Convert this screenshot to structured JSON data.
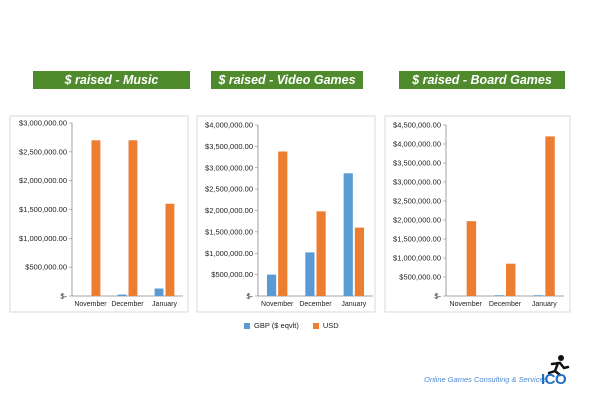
{
  "colors": {
    "gbp": "#5b9bd5",
    "usd": "#ed7d31",
    "banner": "#4f8a2d",
    "brand": "#1f6fc0"
  },
  "banners": [
    "$ raised  - Music",
    "$ raised  - Video Games",
    "$ raised  - Board Games"
  ],
  "legend": {
    "gbp": "GBP ($ eqvlt)",
    "usd": "USD"
  },
  "footer": {
    "tagline": "Online Games Consulting & Services",
    "logo_text": "ICO",
    "logo_icon": "running-person-icon"
  },
  "chart_data": [
    {
      "type": "bar",
      "title": "$ raised  - Music",
      "categories": [
        "November",
        "December",
        "January"
      ],
      "series": [
        {
          "name": "GBP ($ eqvlt)",
          "values": [
            0,
            25000,
            130000
          ]
        },
        {
          "name": "USD",
          "values": [
            2700000,
            2700000,
            1600000
          ]
        }
      ],
      "ylim": [
        0,
        3000000
      ],
      "yticks": [
        "$-",
        "$500,000.00",
        "$1,000,000.00",
        "$1,500,000.00",
        "$2,000,000.00",
        "$2,500,000.00",
        "$3,000,000.00"
      ],
      "grid": false
    },
    {
      "type": "bar",
      "title": "$ raised  - Video Games",
      "categories": [
        "November",
        "December",
        "January"
      ],
      "series": [
        {
          "name": "GBP ($ eqvlt)",
          "values": [
            500000,
            1020000,
            2870000
          ]
        },
        {
          "name": "USD",
          "values": [
            3380000,
            1980000,
            1600000
          ]
        }
      ],
      "ylim": [
        0,
        4000000
      ],
      "yticks": [
        "$-",
        "$500,000.00",
        "$1,000,000.00",
        "$1,500,000.00",
        "$2,000,000.00",
        "$2,500,000.00",
        "$3,000,000.00",
        "$3,500,000.00",
        "$4,000,000.00"
      ],
      "grid": false
    },
    {
      "type": "bar",
      "title": "$ raised  - Board Games",
      "categories": [
        "November",
        "December",
        "January"
      ],
      "series": [
        {
          "name": "GBP ($ eqvlt)",
          "values": [
            0,
            20000,
            20000
          ]
        },
        {
          "name": "USD",
          "values": [
            1970000,
            850000,
            4200000
          ]
        }
      ],
      "ylim": [
        0,
        4500000
      ],
      "yticks": [
        "$-",
        "$500,000.00",
        "$1,000,000.00",
        "$1,500,000.00",
        "$2,000,000.00",
        "$2,500,000.00",
        "$3,000,000.00",
        "$3,500,000.00",
        "$4,000,000.00",
        "$4,500,000.00"
      ],
      "grid": false
    }
  ]
}
